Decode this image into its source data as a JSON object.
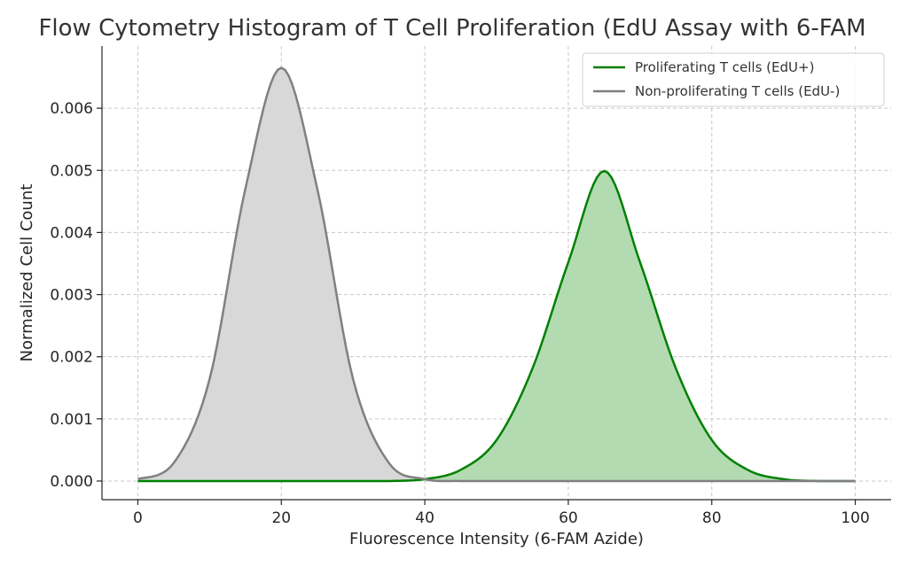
{
  "chart_data": {
    "type": "area",
    "title": "Flow Cytometry Histogram of T Cell Proliferation (EdU Assay with 6-FAM",
    "xlabel": "Fluorescence Intensity (6-FAM Azide)",
    "ylabel": "Normalized Cell Count",
    "xlim": [
      -5,
      105
    ],
    "ylim": [
      -0.0003,
      0.007
    ],
    "x_ticks": [
      0,
      20,
      40,
      60,
      80,
      100
    ],
    "x_tick_labels": [
      "0",
      "20",
      "40",
      "60",
      "80",
      "100"
    ],
    "y_ticks": [
      0.0,
      0.001,
      0.002,
      0.003,
      0.004,
      0.005,
      0.006
    ],
    "y_tick_labels": [
      "0.000",
      "0.001",
      "0.002",
      "0.003",
      "0.004",
      "0.005",
      "0.006"
    ],
    "grid": true,
    "legend_position": "top-right",
    "x": [
      0,
      5,
      10,
      15,
      20,
      25,
      30,
      35,
      40,
      45,
      50,
      55,
      60,
      65,
      70,
      75,
      80,
      85,
      90,
      95,
      100
    ],
    "series": [
      {
        "name": "Proliferating T cells (EdU+)",
        "color": "#008000",
        "fill": "#b2dbb2",
        "values": [
          0.0,
          0.0,
          0.0,
          0.0,
          0.0,
          0.0,
          0.0,
          0.0,
          3e-05,
          0.00018,
          0.00066,
          0.00181,
          0.00352,
          0.00499,
          0.00352,
          0.00181,
          0.00066,
          0.00018,
          3e-05,
          0.0,
          0.0
        ]
      },
      {
        "name": "Non-proliferating T cells (EdU-)",
        "color": "#808080",
        "fill": "#d8d8d8",
        "values": [
          3e-05,
          0.00029,
          0.00164,
          0.00471,
          0.00665,
          0.00471,
          0.00164,
          0.00029,
          3e-05,
          0.0,
          0.0,
          0.0,
          0.0,
          0.0,
          0.0,
          0.0,
          0.0,
          0.0,
          0.0,
          0.0,
          0.0
        ]
      }
    ]
  }
}
